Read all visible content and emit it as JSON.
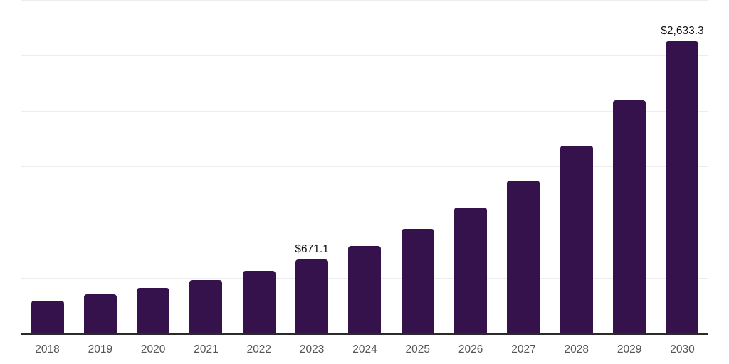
{
  "chart_data": {
    "type": "bar",
    "title": "",
    "xlabel": "",
    "ylabel": "",
    "categories": [
      "2018",
      "2019",
      "2020",
      "2021",
      "2022",
      "2023",
      "2024",
      "2025",
      "2026",
      "2027",
      "2028",
      "2029",
      "2030"
    ],
    "values": [
      300,
      358,
      415,
      486,
      569,
      671.1,
      793,
      946,
      1138,
      1381,
      1694,
      2103,
      2633.3
    ],
    "data_labels": {
      "2023": "$671.1",
      "2030": "$2,633.3"
    },
    "ylim": [
      0,
      3004
    ],
    "gridline_values": [
      500,
      1000,
      1500,
      2000,
      2500,
      3000
    ],
    "grid": true,
    "legend": "none",
    "y_axis_tick_labels_visible": false
  },
  "style": {
    "bar_color": "#36124D",
    "grid_color": "#ededed",
    "axis_line_color": "#2b2b2b",
    "tick_label_color": "#545454",
    "data_label_color": "#111111",
    "background_color": "#ffffff"
  }
}
